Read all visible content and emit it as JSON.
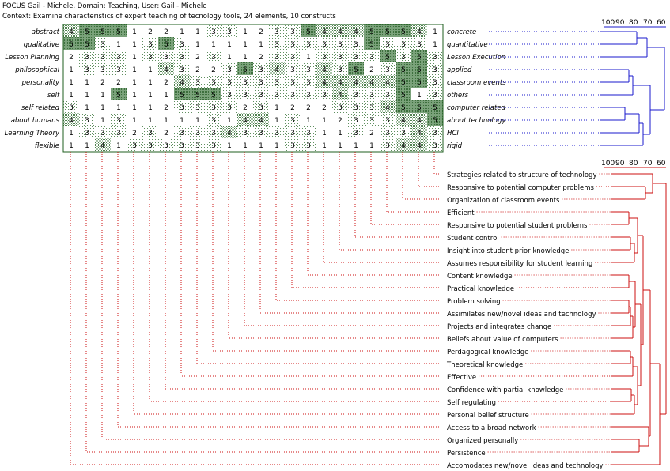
{
  "header": {
    "title": "FOCUS Gail - Michele, Domain: Teaching, User: Gail - Michele",
    "context": "Context: Examine characteristics of expert teaching of tecnology tools, 24 elements, 10 constructs"
  },
  "colors": {
    "grid_border": "#1f5f1f",
    "shade": "#6e9a6e",
    "construct_tree": "#1a1acc",
    "element_tree": "#cc1111",
    "leader": "#cc1111"
  },
  "construct_scale": [
    "100",
    "90",
    "80",
    "70",
    "60"
  ],
  "element_scale": [
    "100",
    "90",
    "80",
    "70",
    "60"
  ],
  "constructs": [
    {
      "left": "abstract",
      "right": "concrete",
      "ratings": [
        4,
        5,
        5,
        5,
        1,
        2,
        2,
        1,
        1,
        3,
        3,
        1,
        2,
        3,
        3,
        5,
        4,
        4,
        4,
        5,
        5,
        5,
        4,
        1
      ]
    },
    {
      "left": "qualitative",
      "right": "quantitative",
      "ratings": [
        5,
        5,
        3,
        1,
        1,
        3,
        5,
        3,
        1,
        1,
        1,
        1,
        1,
        3,
        3,
        3,
        3,
        3,
        3,
        5,
        3,
        3,
        3,
        1
      ]
    },
    {
      "left": "Lesson Planning",
      "right": "Lesson Execution",
      "ratings": [
        2,
        3,
        3,
        3,
        1,
        3,
        3,
        3,
        2,
        3,
        1,
        1,
        2,
        3,
        3,
        1,
        3,
        3,
        3,
        3,
        5,
        3,
        5,
        3
      ]
    },
    {
      "left": "philosophical",
      "right": "applied",
      "ratings": [
        1,
        3,
        3,
        3,
        1,
        1,
        4,
        3,
        2,
        2,
        3,
        5,
        3,
        4,
        3,
        3,
        4,
        3,
        5,
        2,
        3,
        5,
        5,
        3
      ]
    },
    {
      "left": "personality",
      "right": "classroom events",
      "ratings": [
        1,
        1,
        2,
        2,
        1,
        1,
        2,
        4,
        3,
        3,
        3,
        3,
        3,
        3,
        3,
        3,
        4,
        4,
        4,
        4,
        4,
        5,
        5,
        3
      ]
    },
    {
      "left": "self",
      "right": "others",
      "ratings": [
        1,
        1,
        1,
        5,
        1,
        1,
        1,
        5,
        5,
        5,
        3,
        3,
        3,
        3,
        3,
        3,
        3,
        4,
        3,
        3,
        3,
        5,
        1,
        3
      ]
    },
    {
      "left": "self related",
      "right": "computer related",
      "ratings": [
        3,
        1,
        1,
        1,
        1,
        1,
        2,
        3,
        3,
        3,
        3,
        2,
        3,
        1,
        2,
        2,
        2,
        3,
        3,
        3,
        4,
        5,
        5,
        5
      ]
    },
    {
      "left": "about humans",
      "right": "about technology",
      "ratings": [
        4,
        3,
        1,
        3,
        1,
        1,
        1,
        1,
        1,
        3,
        1,
        4,
        4,
        1,
        3,
        1,
        1,
        2,
        3,
        3,
        3,
        4,
        4,
        5
      ]
    },
    {
      "left": "Learning Theory",
      "right": "HCI",
      "ratings": [
        1,
        3,
        3,
        3,
        2,
        3,
        2,
        3,
        3,
        3,
        4,
        3,
        3,
        3,
        3,
        3,
        1,
        1,
        3,
        2,
        3,
        3,
        4,
        3
      ]
    },
    {
      "left": "flexible",
      "right": "rigid",
      "ratings": [
        1,
        1,
        4,
        1,
        3,
        3,
        3,
        3,
        3,
        3,
        1,
        1,
        1,
        1,
        3,
        3,
        1,
        1,
        1,
        1,
        3,
        4,
        4,
        3
      ]
    }
  ],
  "elements": [
    "Strategies related to structure of technology",
    "Responsive to potential computer problems",
    "Organization of classroom events",
    "Efficient",
    "Responsive to potential student problems",
    "Student control",
    "Insight into student prior knowledge",
    "Assumes responsibility for student learning",
    "Content knowledge",
    "Practical knowledge",
    "Problem solving",
    "Assimilates new/novel ideas and technology",
    "Projects and integrates change",
    "Beliefs about value of computers",
    "Perdagogical knowledge",
    "Theoretical knowledge",
    "Effective",
    "Confidence with partial knowledge",
    "Self regulating",
    "Personal belief structure",
    "Access to a broad network",
    "Organized personally",
    "Persistence",
    "Accomodates new/novel ideas and technology"
  ]
}
